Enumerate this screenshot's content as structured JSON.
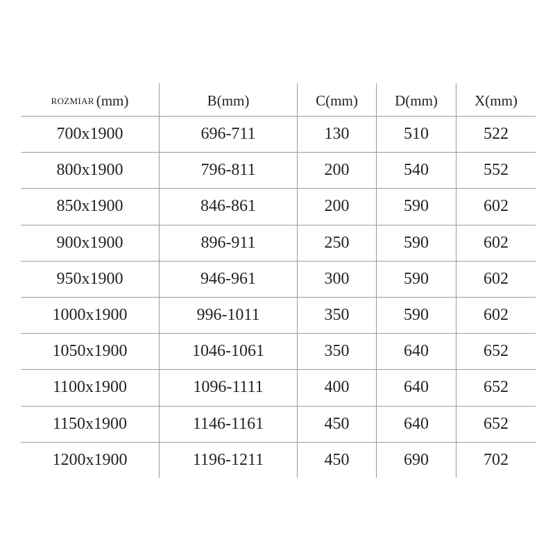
{
  "table": {
    "headers": [
      {
        "label": "ROZMIAR",
        "unit": "(mm)"
      },
      {
        "label": "B",
        "unit": "(mm)"
      },
      {
        "label": "C",
        "unit": "(mm)"
      },
      {
        "label": "D",
        "unit": "(mm)"
      },
      {
        "label": "X",
        "unit": "(mm)"
      }
    ],
    "rows": [
      [
        "700x1900",
        "696-711",
        "130",
        "510",
        "522"
      ],
      [
        "800x1900",
        "796-811",
        "200",
        "540",
        "552"
      ],
      [
        "850x1900",
        "846-861",
        "200",
        "590",
        "602"
      ],
      [
        "900x1900",
        "896-911",
        "250",
        "590",
        "602"
      ],
      [
        "950x1900",
        "946-961",
        "300",
        "590",
        "602"
      ],
      [
        "1000x1900",
        "996-1011",
        "350",
        "590",
        "602"
      ],
      [
        "1050x1900",
        "1046-1061",
        "350",
        "640",
        "652"
      ],
      [
        "1100x1900",
        "1096-1111",
        "400",
        "640",
        "652"
      ],
      [
        "1150x1900",
        "1146-1161",
        "450",
        "640",
        "652"
      ],
      [
        "1200x1900",
        "1196-1211",
        "450",
        "690",
        "702"
      ]
    ]
  }
}
